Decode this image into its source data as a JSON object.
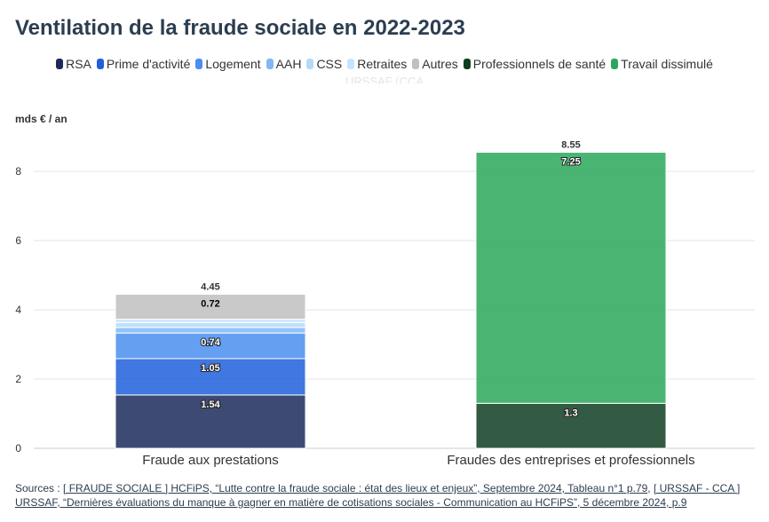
{
  "title": "Ventilation de la fraude sociale en 2022-2023",
  "unit_label": "mds € / an",
  "legend": [
    {
      "name": "RSA",
      "color": "#1b2a5a"
    },
    {
      "name": "Prime d'activité",
      "color": "#1f5fdc"
    },
    {
      "name": "Logement",
      "color": "#4a8ef0"
    },
    {
      "name": "AAH",
      "color": "#7fb8f5"
    },
    {
      "name": "CSS",
      "color": "#b5d9fa"
    },
    {
      "name": "Retraites",
      "color": "#c7e4fc"
    },
    {
      "name": "Autres",
      "color": "#c0c0c0"
    },
    {
      "name": "Professionnels de santé",
      "color": "#0f3d22"
    },
    {
      "name": "Travail dissimulé",
      "color": "#2aa85a"
    }
  ],
  "legend_hidden": "URSSAF (CCA",
  "chart_data": {
    "type": "bar",
    "stacked": true,
    "categories": [
      "Fraude aux prestations",
      "Fraudes des entreprises et professionnels"
    ],
    "series": [
      {
        "name": "RSA",
        "values": [
          1.54,
          0
        ],
        "color": "#1b2a5a",
        "label": true
      },
      {
        "name": "Prime d'activité",
        "values": [
          1.05,
          0
        ],
        "color": "#1f5fdc",
        "label": true
      },
      {
        "name": "Logement",
        "values": [
          0.74,
          0
        ],
        "color": "#4a8ef0",
        "label": true
      },
      {
        "name": "AAH",
        "values": [
          0.16,
          0
        ],
        "color": "#7fb8f5",
        "label": false
      },
      {
        "name": "CSS",
        "values": [
          0.14,
          0
        ],
        "color": "#b5d9fa",
        "label": false
      },
      {
        "name": "Retraites",
        "values": [
          0.1,
          0
        ],
        "color": "#c7e4fc",
        "label": false
      },
      {
        "name": "Autres",
        "values": [
          0.72,
          0
        ],
        "color": "#c0c0c0",
        "label": true,
        "dark_label": true
      },
      {
        "name": "Professionnels de santé",
        "values": [
          0,
          1.3
        ],
        "color": "#0f3d22",
        "label": true
      },
      {
        "name": "Travail dissimulé",
        "values": [
          0,
          7.25
        ],
        "color": "#2aa85a",
        "label": true
      }
    ],
    "totals": [
      "4.45",
      "8.55"
    ],
    "ylabel": "mds € / an",
    "ylim": [
      0,
      9
    ],
    "yticks": [
      0,
      2,
      4,
      6,
      8
    ],
    "grid": true,
    "legend_position": "top"
  },
  "sources": {
    "prefix": "Sources : ",
    "link1": "[ FRAUDE SOCIALE ] HCFiPS, “Lutte contre la fraude sociale : état des lieux et enjeux”, Septembre 2024, Tableau n°1 p.79",
    "sep": ", ",
    "link2": "[ URSSAF - CCA ] URSSAF, “Dernières évaluations du manque à gagner en matière de cotisations sociales - Communication au HCFiPS”, 5 décembre 2024, p.9"
  }
}
